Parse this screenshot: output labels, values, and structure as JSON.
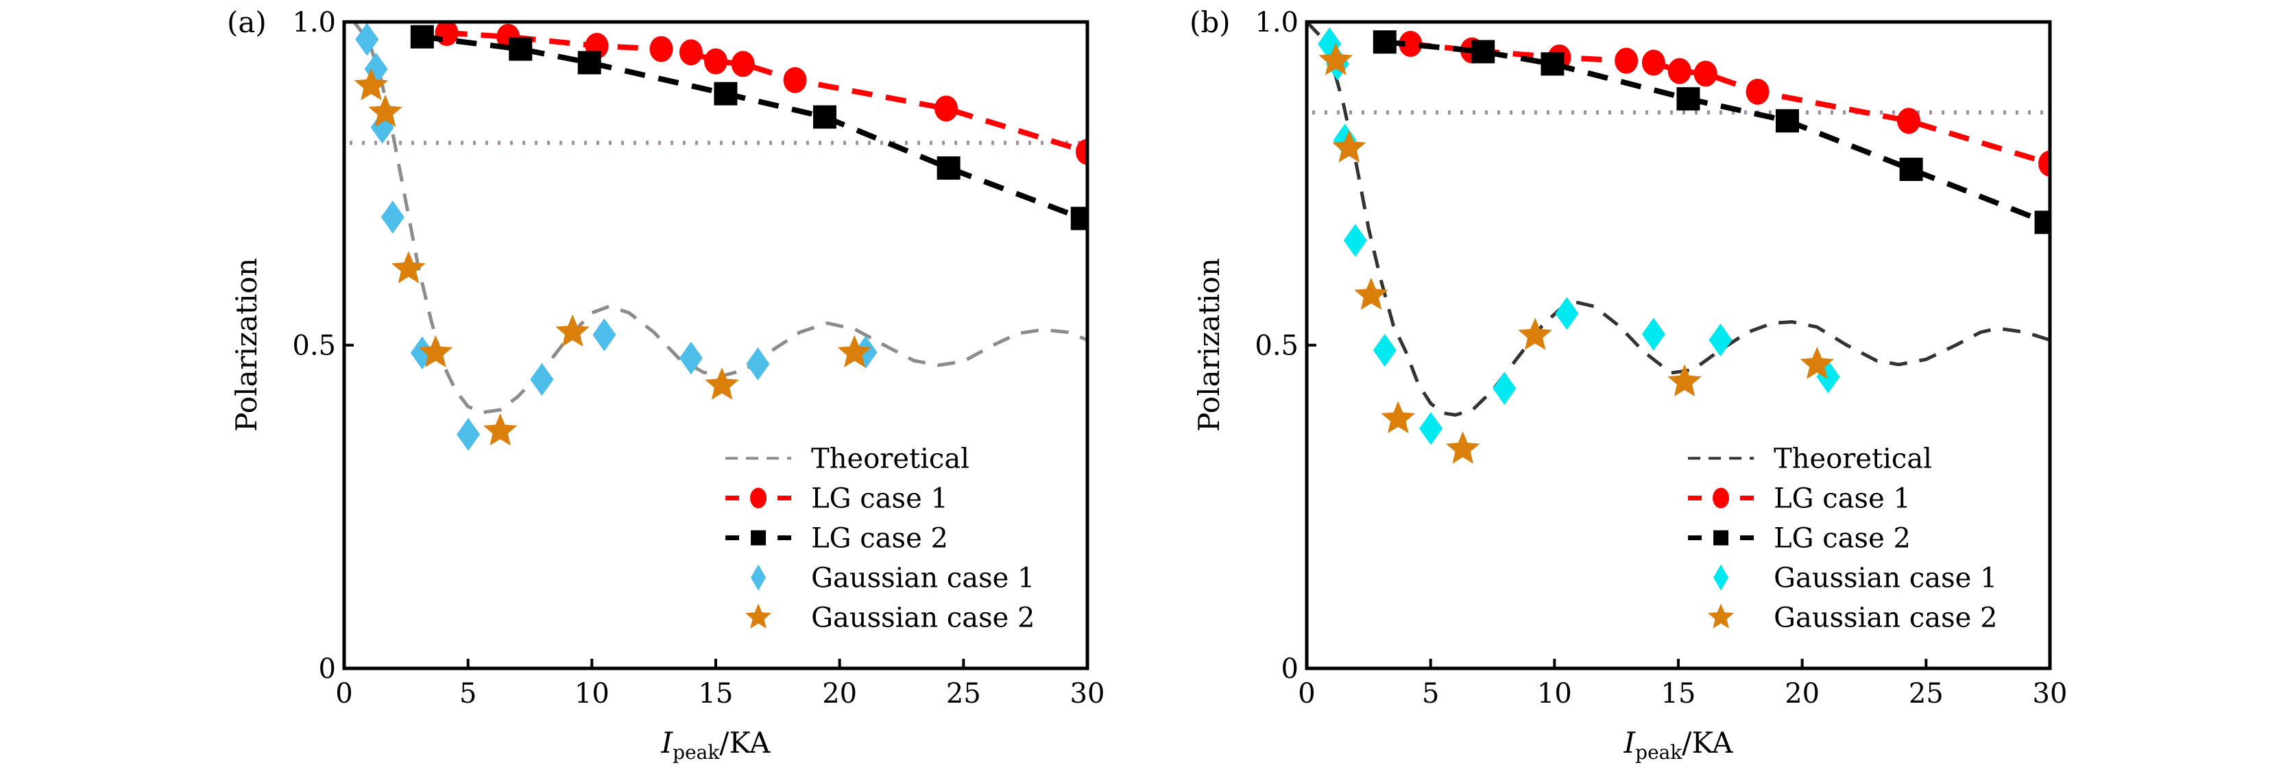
{
  "figure": {
    "panels": [
      {
        "id": "a",
        "label": "(a)"
      },
      {
        "id": "b",
        "label": "(b)"
      }
    ]
  },
  "chart_data": [
    {
      "type": "scatter",
      "panel": "(a)",
      "title": "",
      "xlabel": "I_peak/KA",
      "xlabel_main": "I",
      "xlabel_sub": "peak",
      "xlabel_tail": "/KA",
      "ylabel": "Polarization",
      "xlim": [
        0,
        30
      ],
      "ylim": [
        0,
        1.0
      ],
      "xticks": [
        0,
        5,
        10,
        15,
        20,
        25,
        30
      ],
      "xtick_labels": [
        "0",
        "5",
        "10",
        "15",
        "20",
        "25",
        "30"
      ],
      "yticks": [
        0,
        0.5,
        1.0
      ],
      "ytick_labels": [
        "0",
        "0.5",
        "1.0"
      ],
      "grid": false,
      "legend_position": "bottom-right",
      "reference_line": {
        "style": "dotted",
        "y": 0.813,
        "color": "#a68aa6"
      },
      "series": [
        {
          "name": "Theoretical",
          "style": "dashed-line",
          "color": "#8c8c8c",
          "x": [
            0.4,
            1.0,
            1.5,
            2.0,
            2.5,
            3.0,
            3.5,
            4.0,
            4.5,
            5.0,
            5.6,
            6.3,
            7.0,
            8.0,
            9.0,
            10.0,
            10.7,
            11.5,
            12.5,
            13.5,
            14.5,
            15.3,
            16.2,
            17.2,
            18.4,
            19.5,
            20.6,
            21.8,
            23.0,
            24.0,
            25.0,
            26.2,
            27.2,
            28.2,
            29.2,
            30.0
          ],
          "y": [
            1.0,
            0.97,
            0.91,
            0.82,
            0.72,
            0.62,
            0.54,
            0.47,
            0.43,
            0.405,
            0.396,
            0.4,
            0.42,
            0.46,
            0.51,
            0.55,
            0.56,
            0.55,
            0.52,
            0.48,
            0.458,
            0.453,
            0.462,
            0.49,
            0.52,
            0.534,
            0.525,
            0.5,
            0.476,
            0.469,
            0.475,
            0.5,
            0.518,
            0.524,
            0.52,
            0.508
          ]
        },
        {
          "name": "LG case 1",
          "style": "dashed-line-circle",
          "color": "#ff0000",
          "x": [
            4.14,
            6.62,
            10.2,
            12.8,
            14.0,
            15.0,
            16.1,
            18.2,
            24.3,
            30.0
          ],
          "y": [
            0.983,
            0.977,
            0.963,
            0.958,
            0.953,
            0.939,
            0.935,
            0.91,
            0.866,
            0.799
          ]
        },
        {
          "name": "LG case 2",
          "style": "dashed-line-square",
          "color": "#000000",
          "x": [
            3.15,
            7.12,
            9.9,
            15.4,
            19.4,
            24.4,
            29.8
          ],
          "y": [
            0.977,
            0.958,
            0.937,
            0.889,
            0.853,
            0.774,
            0.696
          ]
        },
        {
          "name": "Gaussian case 1",
          "style": "diamond",
          "color": "#4dbdea",
          "x": [
            0.92,
            1.29,
            1.54,
            1.96,
            3.15,
            5.01,
            7.98,
            10.5,
            14.0,
            16.7,
            21.05
          ],
          "y": [
            0.973,
            0.927,
            0.837,
            0.698,
            0.488,
            0.362,
            0.447,
            0.516,
            0.48,
            0.471,
            0.489
          ]
        },
        {
          "name": "Gaussian case 2",
          "style": "star",
          "color": "#da7f0c",
          "x": [
            1.09,
            1.66,
            2.6,
            3.69,
            6.3,
            9.22,
            15.25,
            20.6
          ],
          "y": [
            0.901,
            0.86,
            0.618,
            0.488,
            0.367,
            0.52,
            0.438,
            0.488
          ]
        }
      ]
    },
    {
      "type": "scatter",
      "panel": "(b)",
      "title": "",
      "xlabel": "I_peak/KA",
      "xlabel_main": "I",
      "xlabel_sub": "peak",
      "xlabel_tail": "/KA",
      "ylabel": "Polarization",
      "xlim": [
        0,
        30
      ],
      "ylim": [
        0,
        1.0
      ],
      "xticks": [
        0,
        5,
        10,
        15,
        20,
        25,
        30
      ],
      "xtick_labels": [
        "0",
        "5",
        "10",
        "15",
        "20",
        "25",
        "30"
      ],
      "yticks": [
        0,
        0.5,
        1.0
      ],
      "ytick_labels": [
        "0",
        "0.5",
        "1.0"
      ],
      "grid": false,
      "legend_position": "bottom-right",
      "reference_line": {
        "style": "dotted",
        "y": 0.86,
        "color": "#a68aa6"
      },
      "series": [
        {
          "name": "Theoretical",
          "style": "dashed-line",
          "color": "#333333",
          "x": [
            0.0,
            0.5,
            1.0,
            1.5,
            2.0,
            2.5,
            3.0,
            3.5,
            4.0,
            4.5,
            5.0,
            5.5,
            6.0,
            6.7,
            7.5,
            8.5,
            9.5,
            10.2,
            10.8,
            11.6,
            12.6,
            13.6,
            14.7,
            15.6,
            16.6,
            17.8,
            18.8,
            19.6,
            20.6,
            21.8,
            23.0,
            23.9,
            25.0,
            26.2,
            27.2,
            27.9,
            29.0,
            30.0
          ],
          "y": [
            1.0,
            0.98,
            0.94,
            0.87,
            0.78,
            0.68,
            0.6,
            0.53,
            0.49,
            0.44,
            0.41,
            0.395,
            0.392,
            0.4,
            0.43,
            0.48,
            0.53,
            0.555,
            0.567,
            0.56,
            0.53,
            0.49,
            0.457,
            0.462,
            0.49,
            0.52,
            0.534,
            0.536,
            0.528,
            0.5,
            0.476,
            0.47,
            0.478,
            0.5,
            0.52,
            0.526,
            0.52,
            0.508
          ]
        },
        {
          "name": "LG case 1",
          "style": "dashed-line-circle",
          "color": "#ff0000",
          "x": [
            4.19,
            6.67,
            10.2,
            12.9,
            14.0,
            15.05,
            16.1,
            18.2,
            24.3,
            30.0
          ],
          "y": [
            0.966,
            0.956,
            0.945,
            0.94,
            0.937,
            0.924,
            0.92,
            0.892,
            0.847,
            0.781
          ]
        },
        {
          "name": "LG case 2",
          "style": "dashed-line-square",
          "color": "#000000",
          "x": [
            3.15,
            7.12,
            9.92,
            15.4,
            19.4,
            24.4,
            29.85
          ],
          "y": [
            0.969,
            0.954,
            0.935,
            0.881,
            0.847,
            0.772,
            0.69
          ]
        },
        {
          "name": "Gaussian case 1",
          "style": "diamond",
          "color": "#00e8f0",
          "x": [
            0.92,
            1.24,
            1.54,
            1.96,
            3.15,
            5.01,
            7.98,
            10.5,
            14.0,
            16.7,
            21.05
          ],
          "y": [
            0.966,
            0.935,
            0.817,
            0.662,
            0.492,
            0.371,
            0.433,
            0.549,
            0.517,
            0.508,
            0.451
          ]
        },
        {
          "name": "Gaussian case 2",
          "style": "star",
          "color": "#da7f0c",
          "x": [
            1.17,
            1.71,
            2.6,
            3.69,
            6.3,
            9.22,
            15.25,
            20.6
          ],
          "y": [
            0.94,
            0.805,
            0.577,
            0.386,
            0.339,
            0.515,
            0.443,
            0.47
          ]
        }
      ]
    }
  ]
}
